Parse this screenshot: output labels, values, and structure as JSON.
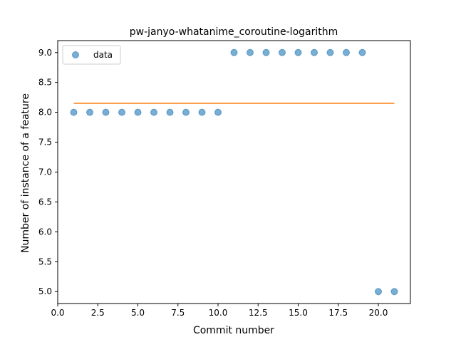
{
  "chart_data": {
    "type": "scatter",
    "title": "pw-janyo-whatanime_coroutine-logarithm",
    "xlabel": "Commit number",
    "ylabel": "Number of instance of a feature",
    "xlim": [
      0.0,
      22.0
    ],
    "ylim": [
      4.8,
      9.2
    ],
    "xticks": [
      0.0,
      2.5,
      5.0,
      7.5,
      10.0,
      12.5,
      15.0,
      17.5,
      20.0
    ],
    "xtick_labels": [
      "0.0",
      "2.5",
      "5.0",
      "7.5",
      "10.0",
      "12.5",
      "15.0",
      "17.5",
      "20.0"
    ],
    "yticks": [
      5.0,
      5.5,
      6.0,
      6.5,
      7.0,
      7.5,
      8.0,
      8.5,
      9.0
    ],
    "ytick_labels": [
      "5.0",
      "5.5",
      "6.0",
      "6.5",
      "7.0",
      "7.5",
      "8.0",
      "8.5",
      "9.0"
    ],
    "grid": false,
    "legend_position": "top-left",
    "series": [
      {
        "name": "data",
        "kind": "scatter",
        "color": "#1f77b4",
        "x": [
          1,
          2,
          3,
          4,
          5,
          6,
          7,
          8,
          9,
          10,
          11,
          12,
          13,
          14,
          15,
          16,
          17,
          18,
          19,
          20,
          21
        ],
        "y": [
          8,
          8,
          8,
          8,
          8,
          8,
          8,
          8,
          8,
          8,
          9,
          9,
          9,
          9,
          9,
          9,
          9,
          9,
          9,
          5,
          5
        ]
      },
      {
        "kind": "line",
        "color": "#ff7f0e",
        "x": [
          1,
          21
        ],
        "y": [
          8.15,
          8.15
        ]
      }
    ]
  }
}
